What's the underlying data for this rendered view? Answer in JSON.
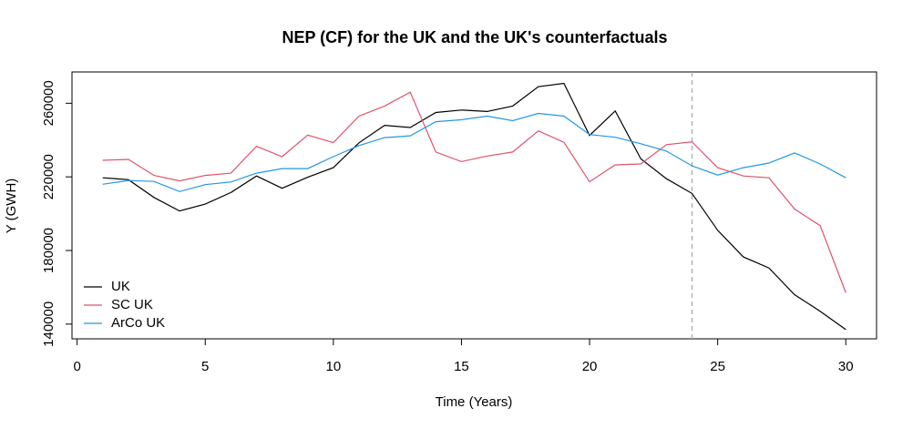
{
  "chart_data": {
    "type": "line",
    "title": "NEP (CF) for the UK and the UK's counterfactuals",
    "xlabel": "Time (Years)",
    "ylabel": "Y (GWH)",
    "xlim": [
      -0.2,
      31.2
    ],
    "ylim": [
      132000,
      277000
    ],
    "xticks": [
      0,
      5,
      10,
      15,
      20,
      25,
      30
    ],
    "yticks": [
      140000,
      180000,
      220000,
      260000
    ],
    "x": [
      1,
      2,
      3,
      4,
      5,
      6,
      7,
      8,
      9,
      10,
      11,
      12,
      13,
      14,
      15,
      16,
      17,
      18,
      19,
      20,
      21,
      22,
      23,
      24,
      25,
      26,
      27,
      28,
      29,
      30
    ],
    "vline": {
      "x": 24,
      "style": "dashed",
      "color": "#aaaaaa"
    },
    "legend_position": "bottom-left",
    "series": [
      {
        "name": "UK",
        "color": "#000000",
        "values": [
          219500,
          218500,
          208800,
          201500,
          205200,
          211500,
          220500,
          213800,
          219800,
          225000,
          238500,
          248000,
          246800,
          255000,
          256300,
          255500,
          258500,
          269000,
          270800,
          242500,
          255800,
          229800,
          219000,
          211000,
          191000,
          176500,
          170500,
          156000,
          147000,
          137000
        ]
      },
      {
        "name": "SC UK",
        "color": "#DF536B",
        "values": [
          229000,
          229500,
          220800,
          217800,
          220800,
          222000,
          236600,
          231000,
          242700,
          238600,
          253000,
          258500,
          266000,
          233500,
          228300,
          231300,
          233500,
          245000,
          238800,
          217300,
          226500,
          227000,
          237500,
          239000,
          225000,
          220500,
          219500,
          202500,
          193500,
          157000
        ]
      },
      {
        "name": "ArCo UK",
        "color": "#2297E6",
        "values": [
          216000,
          218000,
          217500,
          212000,
          215800,
          217200,
          222000,
          224500,
          224500,
          231000,
          237000,
          241300,
          242300,
          250000,
          251000,
          253000,
          250500,
          254500,
          253000,
          243000,
          241500,
          238000,
          234000,
          226000,
          221000,
          225000,
          227500,
          233000,
          227000,
          219500
        ]
      }
    ]
  }
}
